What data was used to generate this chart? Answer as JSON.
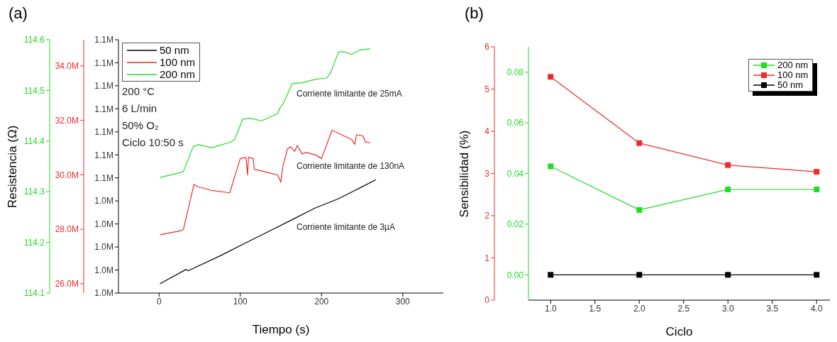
{
  "chart_data": [
    {
      "type": "line",
      "title": "(a)",
      "xlabel": "Tiempo (s)",
      "ylabel": "Resistencia (Ω)",
      "xlim": [
        -50,
        350
      ],
      "xticks": [
        0,
        100,
        200,
        300
      ],
      "ylim": [
        114.1,
        114.6
      ],
      "yticks": [
        114.1,
        114.2,
        114.3,
        114.4,
        114.5,
        114.6
      ],
      "y2lim": [
        25660000,
        34960000
      ],
      "y2ticks": [
        {
          "value": 26000000,
          "label": "26.0M"
        },
        {
          "value": 28000000,
          "label": "28.0M"
        },
        {
          "value": 30000000,
          "label": "30.0M"
        },
        {
          "value": 32000000,
          "label": "32.0M"
        },
        {
          "value": 34000000,
          "label": "34.0M"
        }
      ],
      "y3lim": [
        1000000,
        1110000
      ],
      "y3ticks": [
        {
          "value": 1000000,
          "label": "1.0M"
        },
        {
          "value": 1010000,
          "label": "1.0M"
        },
        {
          "value": 1020000,
          "label": "1.0M"
        },
        {
          "value": 1030000,
          "label": "1.0M"
        },
        {
          "value": 1040000,
          "label": "1.0M"
        },
        {
          "value": 1050000,
          "label": "1.1M"
        },
        {
          "value": 1060000,
          "label": "1.1M"
        },
        {
          "value": 1070000,
          "label": "1.1M"
        },
        {
          "value": 1080000,
          "label": "1.1M"
        },
        {
          "value": 1090000,
          "label": "1.1M"
        },
        {
          "value": 1100000,
          "label": "1.1M"
        },
        {
          "value": 1110000,
          "label": "1.1M"
        }
      ],
      "legend": "top left",
      "marker": "none",
      "annotations": [
        "200 °C",
        "6 L/min",
        "50% O₂",
        "Ciclo 10:50 s",
        "Corriente limitante de 25mA",
        "Corriente limitante de 130nA",
        "Corriente limitante de 3µA"
      ],
      "series": [
        {
          "name": "50 nm",
          "color": "#000000",
          "axis": "y3",
          "x": [
            1,
            33,
            36,
            76,
            105,
            134,
            163,
            192,
            221,
            238,
            267
          ],
          "values": [
            1004000,
            1010200,
            1009700,
            1016300,
            1021500,
            1026600,
            1031700,
            1036900,
            1041000,
            1044000,
            1049200
          ]
        },
        {
          "name": "100 nm",
          "color": "#ee2b2b",
          "axis": "y2",
          "x": [
            1,
            27,
            30,
            43,
            48,
            65,
            87,
            100,
            107,
            109,
            110,
            116,
            117,
            135,
            146,
            150,
            152,
            158,
            162,
            167,
            170,
            176,
            181,
            193,
            200,
            213,
            222,
            237,
            241,
            243,
            251,
            254,
            260
          ],
          "values": [
            27800000,
            27950000,
            28000000,
            29650000,
            29560000,
            29430000,
            29340000,
            30600000,
            30640000,
            29990000,
            30640000,
            30600000,
            30210000,
            30080000,
            29990000,
            29730000,
            30250000,
            30950000,
            31030000,
            30860000,
            31080000,
            30770000,
            30820000,
            30730000,
            30600000,
            31640000,
            31510000,
            31300000,
            31120000,
            31470000,
            31430000,
            31210000,
            31170000
          ]
        },
        {
          "name": "200 nm",
          "color": "#22dd22",
          "x": [
            1,
            27,
            30,
            42,
            48,
            65,
            88,
            93,
            103,
            112,
            126,
            146,
            149,
            152,
            164,
            176,
            193,
            206,
            211,
            221,
            228,
            237,
            248,
            260
          ],
          "values": [
            114.328,
            114.338,
            114.34,
            114.389,
            114.393,
            114.387,
            114.398,
            114.403,
            114.443,
            114.445,
            114.44,
            114.454,
            114.466,
            114.471,
            114.513,
            114.515,
            114.522,
            114.524,
            114.534,
            114.576,
            114.576,
            114.571,
            114.58,
            114.582
          ]
        }
      ]
    },
    {
      "type": "line",
      "title": "(b)",
      "xlabel": "Ciclo",
      "ylabel": "Sensibilidad (%)",
      "xlim": [
        0.75,
        4.15
      ],
      "xticks": [
        {
          "value": 1,
          "label": "1.0"
        },
        1.5,
        {
          "value": 2,
          "label": "2.0"
        },
        2.5,
        {
          "value": 3,
          "label": "3.0"
        },
        3.5,
        {
          "value": 4,
          "label": "4.0"
        }
      ],
      "ylim": [
        0,
        6
      ],
      "yticks": [
        0,
        1,
        2,
        3,
        4,
        5,
        6
      ],
      "y2lim": [
        -0.01,
        0.09
      ],
      "y2ticks": [
        {
          "value": 0,
          "label": "0.00"
        },
        {
          "value": 0.02,
          "label": "0.02"
        },
        {
          "value": 0.04,
          "label": "0.04"
        },
        {
          "value": 0.06,
          "label": "0.06"
        },
        {
          "value": 0.08,
          "label": "0.08"
        }
      ],
      "legend": "top right",
      "marker": "square",
      "series": [
        {
          "name": "200 nm",
          "color": "#22dd22",
          "axis": "y2",
          "x": [
            1,
            2,
            3,
            4
          ],
          "values": [
            0.0428,
            0.0256,
            0.0337,
            0.0337
          ]
        },
        {
          "name": "100 nm",
          "color": "#ee2b2b",
          "x": [
            1,
            2,
            3,
            4
          ],
          "values": [
            5.29,
            3.72,
            3.2,
            3.04
          ]
        },
        {
          "name": "50 nm",
          "color": "#000000",
          "axis": "y2",
          "x": [
            1,
            2,
            3,
            4
          ],
          "values": [
            0,
            0,
            0,
            0
          ]
        }
      ]
    }
  ]
}
